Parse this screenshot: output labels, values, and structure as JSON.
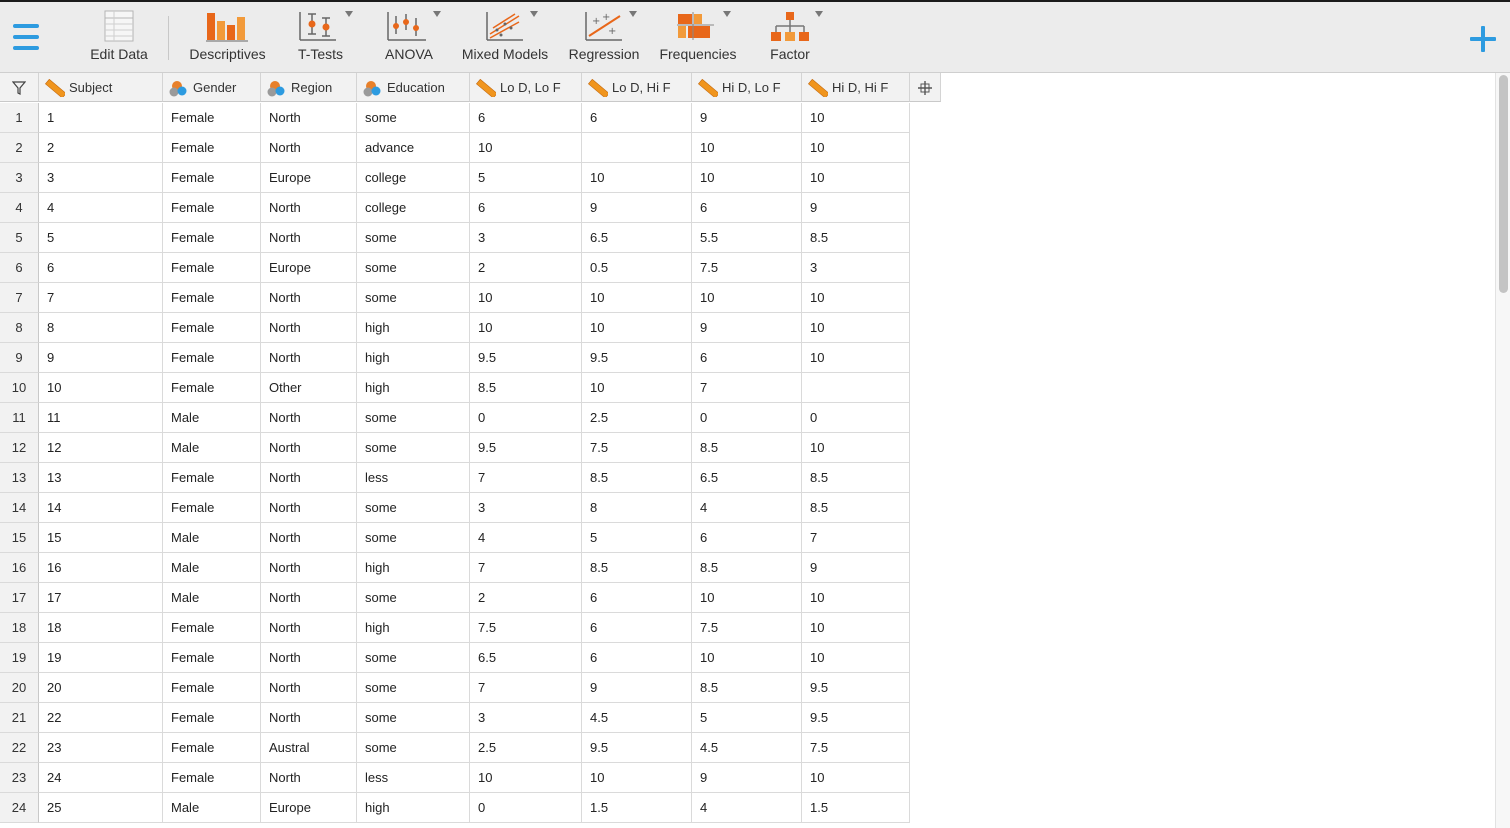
{
  "toolbar": {
    "edit_data": "Edit Data",
    "descriptives": "Descriptives",
    "ttests": "T-Tests",
    "anova": "ANOVA",
    "mixed_models": "Mixed Models",
    "regression": "Regression",
    "frequencies": "Frequencies",
    "factor": "Factor"
  },
  "columns": [
    {
      "name": "Subject",
      "type": "continuous"
    },
    {
      "name": "Gender",
      "type": "nominal"
    },
    {
      "name": "Region",
      "type": "nominal"
    },
    {
      "name": "Education",
      "type": "nominal"
    },
    {
      "name": "Lo D, Lo F",
      "type": "continuous"
    },
    {
      "name": "Lo D, Hi F",
      "type": "continuous"
    },
    {
      "name": "Hi D, Lo F",
      "type": "continuous"
    },
    {
      "name": "Hi D, Hi F",
      "type": "continuous"
    }
  ],
  "rows": [
    [
      "1",
      "1",
      "Female",
      "North",
      "some",
      "6",
      "6",
      "9",
      "10"
    ],
    [
      "2",
      "2",
      "Female",
      "North",
      "advance",
      "10",
      "",
      "10",
      "10"
    ],
    [
      "3",
      "3",
      "Female",
      "Europe",
      "college",
      "5",
      "10",
      "10",
      "10"
    ],
    [
      "4",
      "4",
      "Female",
      "North",
      "college",
      "6",
      "9",
      "6",
      "9"
    ],
    [
      "5",
      "5",
      "Female",
      "North",
      "some",
      "3",
      "6.5",
      "5.5",
      "8.5"
    ],
    [
      "6",
      "6",
      "Female",
      "Europe",
      "some",
      "2",
      "0.5",
      "7.5",
      "3"
    ],
    [
      "7",
      "7",
      "Female",
      "North",
      "some",
      "10",
      "10",
      "10",
      "10"
    ],
    [
      "8",
      "8",
      "Female",
      "North",
      "high",
      "10",
      "10",
      "9",
      "10"
    ],
    [
      "9",
      "9",
      "Female",
      "North",
      "high",
      "9.5",
      "9.5",
      "6",
      "10"
    ],
    [
      "10",
      "10",
      "Female",
      "Other",
      "high",
      "8.5",
      "10",
      "7",
      ""
    ],
    [
      "11",
      "11",
      "Male",
      "North",
      "some",
      "0",
      "2.5",
      "0",
      "0"
    ],
    [
      "12",
      "12",
      "Male",
      "North",
      "some",
      "9.5",
      "7.5",
      "8.5",
      "10"
    ],
    [
      "13",
      "13",
      "Female",
      "North",
      "less",
      "7",
      "8.5",
      "6.5",
      "8.5"
    ],
    [
      "14",
      "14",
      "Female",
      "North",
      "some",
      "3",
      "8",
      "4",
      "8.5"
    ],
    [
      "15",
      "15",
      "Male",
      "North",
      "some",
      "4",
      "5",
      "6",
      "7"
    ],
    [
      "16",
      "16",
      "Male",
      "North",
      "high",
      "7",
      "8.5",
      "8.5",
      "9"
    ],
    [
      "17",
      "17",
      "Male",
      "North",
      "some",
      "2",
      "6",
      "10",
      "10"
    ],
    [
      "18",
      "18",
      "Female",
      "North",
      "high",
      "7.5",
      "6",
      "7.5",
      "10"
    ],
    [
      "19",
      "19",
      "Female",
      "North",
      "some",
      "6.5",
      "6",
      "10",
      "10"
    ],
    [
      "20",
      "20",
      "Female",
      "North",
      "some",
      "7",
      "9",
      "8.5",
      "9.5"
    ],
    [
      "21",
      "22",
      "Female",
      "North",
      "some",
      "3",
      "4.5",
      "5",
      "9.5"
    ],
    [
      "22",
      "23",
      "Female",
      "Austral",
      "some",
      "2.5",
      "9.5",
      "4.5",
      "7.5"
    ],
    [
      "23",
      "24",
      "Female",
      "North",
      "less",
      "10",
      "10",
      "9",
      "10"
    ],
    [
      "24",
      "25",
      "Male",
      "Europe",
      "high",
      "0",
      "1.5",
      "4",
      "1.5"
    ]
  ],
  "colors": {
    "accent": "#2d9be0",
    "icon_orange": "#f07d1a"
  }
}
